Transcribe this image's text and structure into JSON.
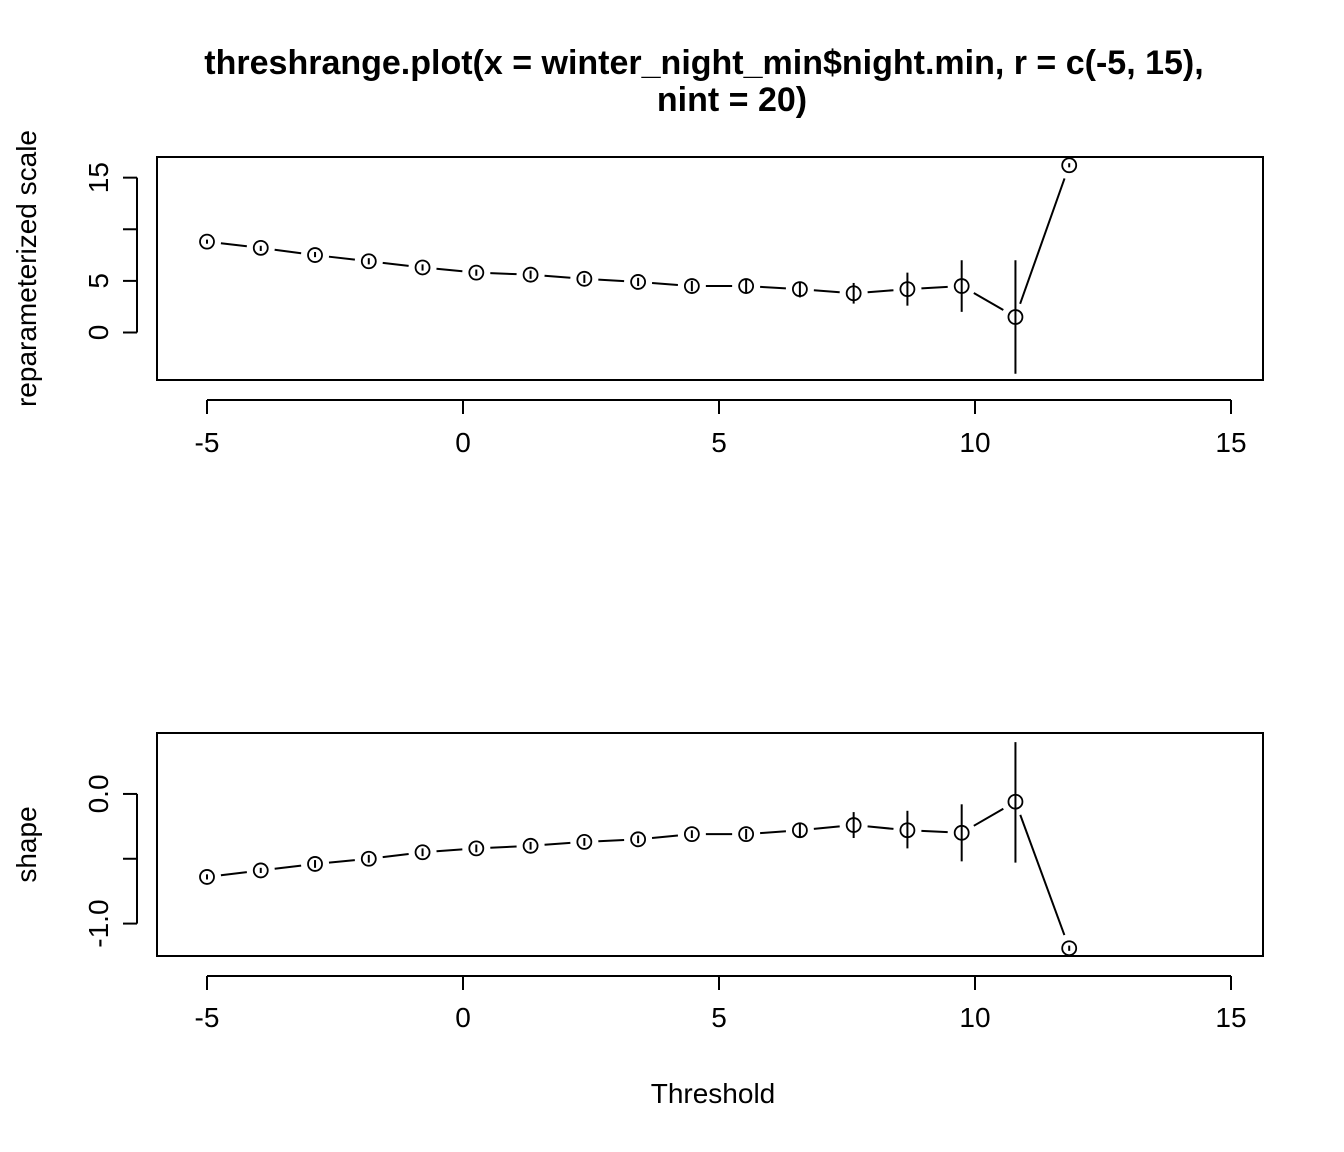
{
  "title_line1": "threshrange.plot(x = winter_night_min$night.min, r = c(-5, 15),",
  "title_line2": "nint = 20)",
  "chart_data": [
    {
      "type": "scatter",
      "name": "panel-scale",
      "xlabel": "",
      "ylabel": "reparameterized scale",
      "xlim": [
        -5,
        15
      ],
      "ylim": [
        -4.6,
        17
      ],
      "xticks": [
        "-5",
        "0",
        "5",
        "10",
        "15"
      ],
      "yticks": [
        "0",
        "5",
        "15"
      ],
      "ytick_values": [
        0,
        5,
        10,
        15
      ],
      "x": [
        -5.0,
        -3.95,
        -2.89,
        -1.84,
        -0.79,
        0.26,
        1.32,
        2.37,
        3.42,
        4.47,
        5.53,
        6.58,
        7.63,
        8.68,
        9.74,
        10.79,
        11.84
      ],
      "y": [
        8.8,
        8.2,
        7.5,
        6.9,
        6.3,
        5.8,
        5.6,
        5.2,
        4.9,
        4.5,
        4.5,
        4.2,
        3.8,
        4.2,
        4.5,
        1.5,
        16.2
      ],
      "lower": [
        8.6,
        7.9,
        7.3,
        6.6,
        6.0,
        5.5,
        5.2,
        4.8,
        4.5,
        4.0,
        3.9,
        3.4,
        2.8,
        2.6,
        2.0,
        -4.0,
        16.0
      ],
      "upper": [
        9.0,
        8.4,
        7.8,
        7.2,
        6.6,
        6.1,
        6.0,
        5.6,
        5.3,
        5.0,
        5.1,
        4.9,
        4.8,
        5.8,
        7.0,
        7.0,
        16.4
      ]
    },
    {
      "type": "scatter",
      "name": "panel-shape",
      "xlabel": "Threshold",
      "ylabel": "shape",
      "xlim": [
        -5,
        15
      ],
      "ylim": [
        -1.25,
        0.47
      ],
      "xticks": [
        "-5",
        "0",
        "5",
        "10",
        "15"
      ],
      "yticks": [
        "-1.0",
        "0.0"
      ],
      "ytick_values": [
        -1.0,
        -0.5,
        0.0
      ],
      "x": [
        -5.0,
        -3.95,
        -2.89,
        -1.84,
        -0.79,
        0.26,
        1.32,
        2.37,
        3.42,
        4.47,
        5.53,
        6.58,
        7.63,
        8.68,
        9.74,
        10.79,
        11.84
      ],
      "y": [
        -0.64,
        -0.59,
        -0.54,
        -0.5,
        -0.45,
        -0.42,
        -0.4,
        -0.37,
        -0.35,
        -0.31,
        -0.31,
        -0.28,
        -0.24,
        -0.28,
        -0.3,
        -0.06,
        -1.19
      ],
      "lower": [
        -0.66,
        -0.61,
        -0.57,
        -0.53,
        -0.48,
        -0.45,
        -0.43,
        -0.4,
        -0.38,
        -0.34,
        -0.35,
        -0.33,
        -0.34,
        -0.42,
        -0.52,
        -0.53,
        -1.21
      ],
      "upper": [
        -0.62,
        -0.57,
        -0.51,
        -0.47,
        -0.42,
        -0.39,
        -0.37,
        -0.34,
        -0.32,
        -0.28,
        -0.27,
        -0.23,
        -0.14,
        -0.13,
        -0.08,
        0.4,
        -1.17
      ]
    }
  ]
}
